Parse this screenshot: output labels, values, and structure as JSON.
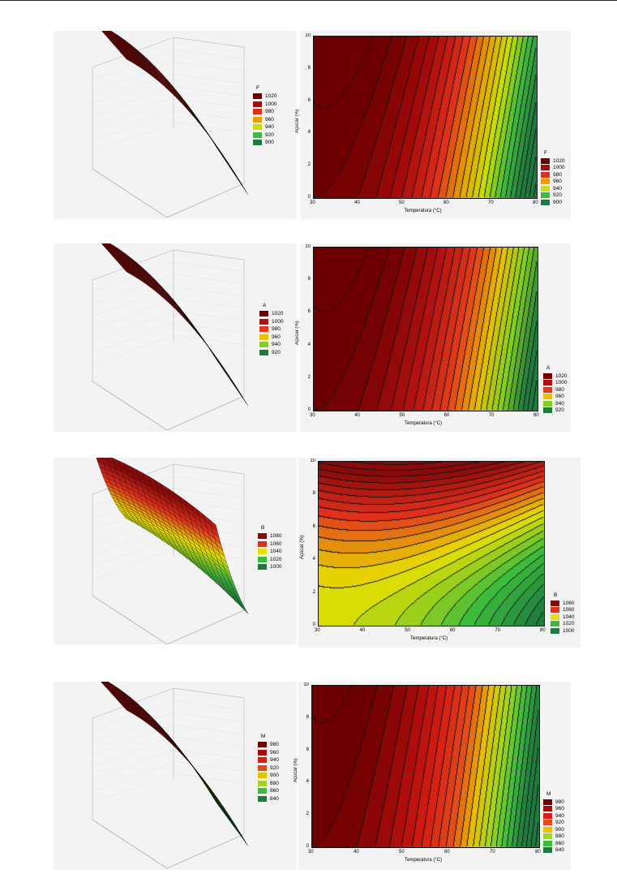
{
  "chart_data": [
    {
      "id": "F",
      "type": "contour",
      "xlabel": "Temperatura (°C)",
      "ylabel": "Açúcar (%)",
      "x_ticks": [
        30,
        40,
        50,
        60,
        70,
        80
      ],
      "y_ticks": [
        0,
        2,
        4,
        6,
        8,
        10
      ],
      "xlim": [
        30,
        80
      ],
      "ylim": [
        0,
        10
      ],
      "legend_title": "F",
      "levels": [
        "1020",
        "1000",
        "980",
        "960",
        "940",
        "920",
        "900"
      ],
      "colors": [
        "#6e0000",
        "#a80b0b",
        "#e02d1c",
        "#e6a000",
        "#c8e000",
        "#3dbb3d",
        "#1e7a3e"
      ],
      "model": {
        "z0": 1025,
        "a": 0.058,
        "xc": 30,
        "b": 0,
        "c": 1.6
      },
      "zrange": [
        900,
        1025
      ]
    },
    {
      "id": "A",
      "type": "contour",
      "xlabel": "Temperatura (°C)",
      "ylabel": "Açúcar (%)",
      "x_ticks": [
        30,
        40,
        50,
        60,
        70,
        80
      ],
      "y_ticks": [
        0,
        2,
        4,
        6,
        8,
        10
      ],
      "xlim": [
        30,
        80
      ],
      "ylim": [
        0,
        10
      ],
      "legend_title": "A",
      "levels": [
        "1020",
        "1000",
        "980",
        "960",
        "940",
        "920"
      ],
      "colors": [
        "#6e0000",
        "#b01010",
        "#e23a1a",
        "#e8c000",
        "#80d020",
        "#1e7a3e"
      ],
      "model": {
        "z0": 1030,
        "a": 0.05,
        "xc": 30,
        "b": 0,
        "c": 1.3
      },
      "zrange": [
        920,
        1030
      ]
    },
    {
      "id": "B",
      "type": "contour",
      "xlabel": "Temperatura (°C)",
      "ylabel": "Açúcar (%)",
      "x_ticks": [
        30,
        40,
        50,
        60,
        70,
        80
      ],
      "y_ticks": [
        0,
        2,
        4,
        6,
        8,
        10
      ],
      "xlim": [
        30,
        80
      ],
      "ylim": [
        0,
        10
      ],
      "legend_title": "B",
      "levels": [
        "1080",
        "1060",
        "1040",
        "1020",
        "1000"
      ],
      "colors": [
        "#8a0a0a",
        "#e0301c",
        "#e8e000",
        "#3dbb3d",
        "#1e7a3e"
      ],
      "model": {
        "z0": 1042,
        "a": 0.02,
        "xc": 30,
        "b": 1.5,
        "c": 0.9,
        "d": 0.012
      },
      "zrange": [
        1000,
        1090
      ]
    },
    {
      "id": "M",
      "type": "contour",
      "xlabel": "Temperatura (°C)",
      "ylabel": "Açúcar (%)",
      "x_ticks": [
        30,
        40,
        50,
        60,
        70,
        80
      ],
      "y_ticks": [
        0,
        2,
        4,
        6,
        8,
        10
      ],
      "xlim": [
        30,
        80
      ],
      "ylim": [
        0,
        10
      ],
      "legend_title": "M",
      "levels": [
        "980",
        "960",
        "940",
        "920",
        "900",
        "880",
        "860",
        "840"
      ],
      "colors": [
        "#6e0000",
        "#a80b0b",
        "#d81e14",
        "#e24a1a",
        "#e8c000",
        "#a0d820",
        "#3dbb3d",
        "#1e7a3e"
      ],
      "model": {
        "z0": 990,
        "a": 0.07,
        "xc": 30,
        "b": 0,
        "c": 1.4
      },
      "zrange": [
        840,
        990
      ]
    }
  ]
}
